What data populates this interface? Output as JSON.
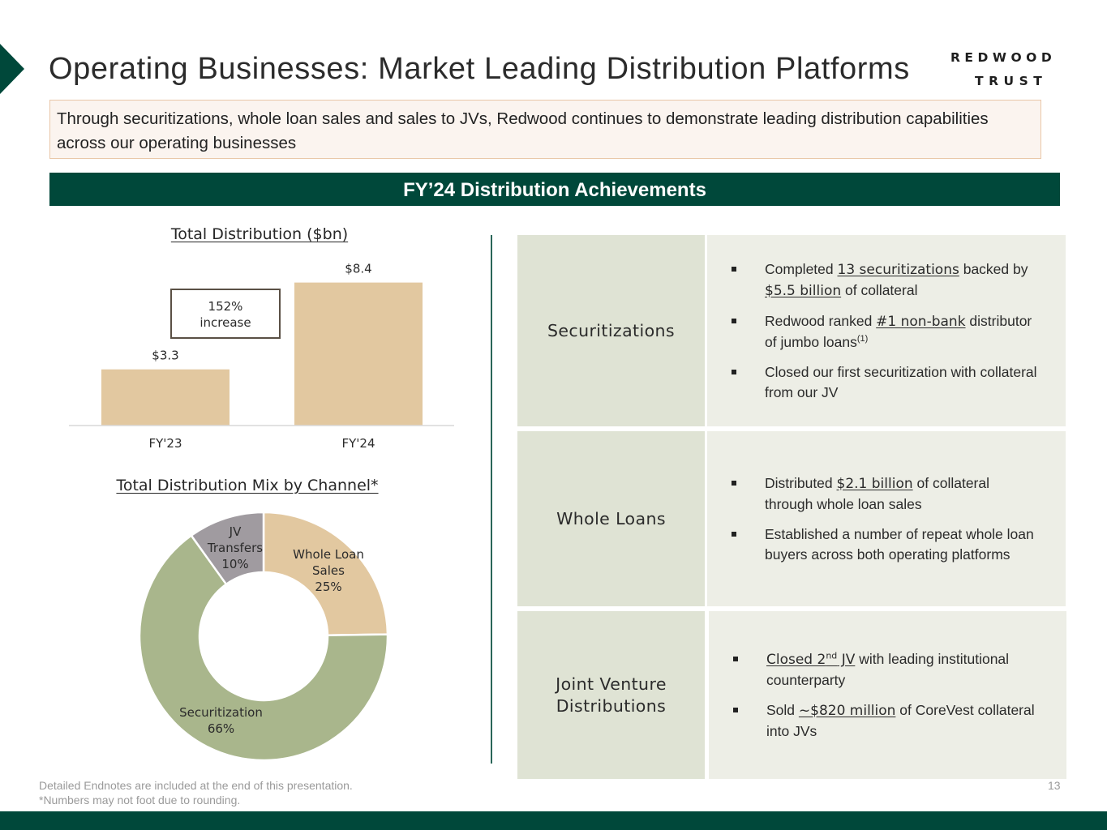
{
  "header": {
    "title": "Operating Businesses: Market Leading Distribution Platforms",
    "logo_line1": "REDWOOD",
    "logo_line2": "TRUST"
  },
  "intro": "Through securitizations, whole loan sales and sales to JVs, Redwood continues to demonstrate leading distribution capabilities across our operating businesses",
  "banner": "FY’24 Distribution Achievements",
  "chart_data": [
    {
      "type": "bar",
      "title": "Total Distribution ($bn)",
      "categories": [
        "FY'23",
        "FY'24"
      ],
      "values": [
        3.3,
        8.4
      ],
      "data_labels": [
        "$3.3",
        "$8.4"
      ],
      "annotation_line1": "152%",
      "annotation_line2": "increase",
      "bar_color": "#e2c8a0",
      "ylim": [
        0,
        10
      ],
      "grid": false
    },
    {
      "type": "pie",
      "title": "Total Distribution Mix by Channel*",
      "slices": [
        {
          "name_line1": "Whole Loan",
          "name_line2": "Sales",
          "value": 25,
          "value_label": "25%",
          "color": "#e2c8a0"
        },
        {
          "name_line1": "Securitization",
          "name_line2": "",
          "value": 66,
          "value_label": "66%",
          "color": "#a9b68c"
        },
        {
          "name_line1": "JV",
          "name_line2": "Transfers",
          "value": 10,
          "value_label": "10%",
          "color": "#a09ba0"
        }
      ]
    }
  ],
  "achievements": {
    "securitizations": {
      "label": "Securitizations",
      "b1_pre": "Completed ",
      "b1_hl1": "13 securitizations",
      "b1_mid": " backed by ",
      "b1_hl2": "$5.5 billion",
      "b1_post": " of collateral",
      "b2_pre": "Redwood ranked ",
      "b2_hl": "#1 non-bank",
      "b2_post": " distributor of jumbo loans",
      "b2_sup": "(1)",
      "b3": "Closed our first securitization with collateral from our JV"
    },
    "whole_loans": {
      "label": "Whole Loans",
      "b1_pre": "Distributed ",
      "b1_hl": "$2.1 billion",
      "b1_post": " of collateral through whole loan sales",
      "b2": "Established a number of repeat whole loan buyers across both operating platforms"
    },
    "jv": {
      "label_line1": "Joint Venture",
      "label_line2": "Distributions",
      "b1_hl_pre": "Closed 2",
      "b1_hl_sup": "nd",
      "b1_hl_post": " JV",
      "b1_post": " with leading institutional counterparty",
      "b2_pre": "Sold ",
      "b2_hl": "~$820 million",
      "b2_post": " of CoreVest collateral into JVs"
    }
  },
  "footer": {
    "endnote": "Detailed Endnotes are included at the end of this presentation.",
    "rounding_note": "*Numbers may not foot due to rounding.",
    "page_number": "13"
  },
  "colors": {
    "brand_green": "#00483a",
    "label_cell": "#dfe3d4",
    "content_cell": "#edeee6"
  }
}
